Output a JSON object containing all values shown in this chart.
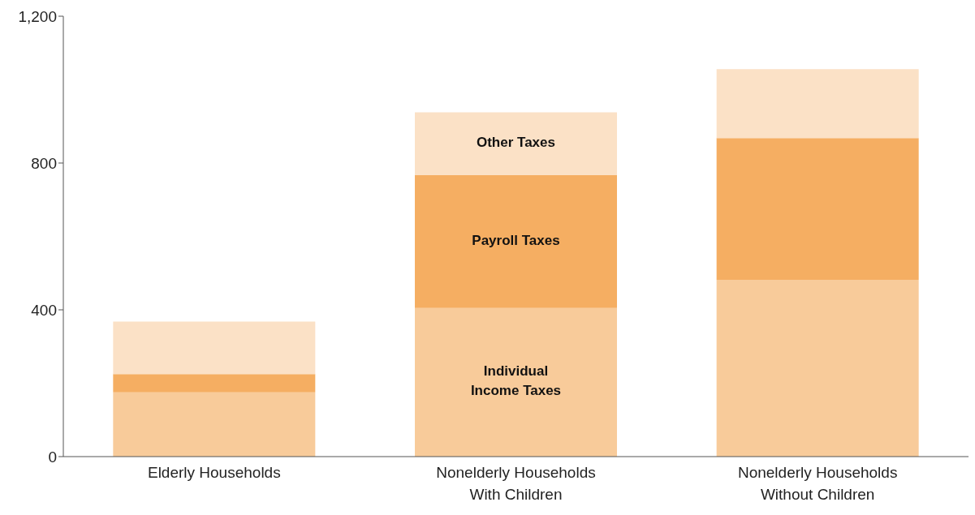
{
  "chart_data": {
    "type": "bar",
    "stacked": true,
    "categories": [
      "Elderly Households",
      "Nonelderly Households\nWith Children",
      "Nonelderly Households\nWithout Children"
    ],
    "series": [
      {
        "name": "Individual\nIncome Taxes",
        "color": "#f8cb9a",
        "values": [
          175,
          405,
          482
        ]
      },
      {
        "name": "Payroll Taxes",
        "color": "#f5ae62",
        "values": [
          50,
          362,
          386
        ]
      },
      {
        "name": "Other Taxes",
        "color": "#fbe1c6",
        "values": [
          143,
          171,
          188
        ]
      }
    ],
    "ylim": [
      0,
      1200
    ],
    "yticks": [
      0,
      {
        "value": 400,
        "label": "400"
      },
      {
        "value": 800,
        "label": "800"
      },
      {
        "value": 1200,
        "label": "1,200"
      }
    ],
    "grid": false,
    "legend": false
  }
}
